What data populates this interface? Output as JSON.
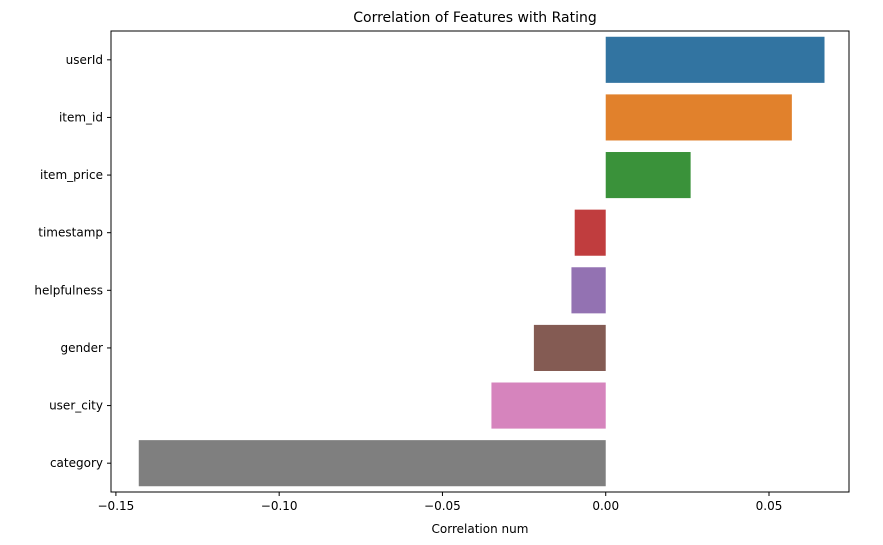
{
  "chart_data": {
    "type": "bar",
    "orientation": "horizontal",
    "title": "Correlation of Features with Rating",
    "xlabel": "Correlation num",
    "ylabel": "",
    "categories": [
      "userId",
      "item_id",
      "item_price",
      "timestamp",
      "helpfulness",
      "gender",
      "user_city",
      "category"
    ],
    "values": [
      0.067,
      0.057,
      0.026,
      -0.0095,
      -0.0105,
      -0.022,
      -0.035,
      -0.143
    ],
    "colors": [
      "#3274a1",
      "#e1812c",
      "#3a923a",
      "#c03d3e",
      "#9372b2",
      "#845b53",
      "#d684bd",
      "#7f7f7f"
    ],
    "xlim": [
      -0.1515,
      0.0745
    ],
    "xticks": [
      -0.15,
      -0.1,
      -0.05,
      0.0,
      0.05
    ],
    "xtick_labels": [
      "−0.15",
      "−0.10",
      "−0.05",
      "0.00",
      "0.05"
    ],
    "grid": false
  }
}
